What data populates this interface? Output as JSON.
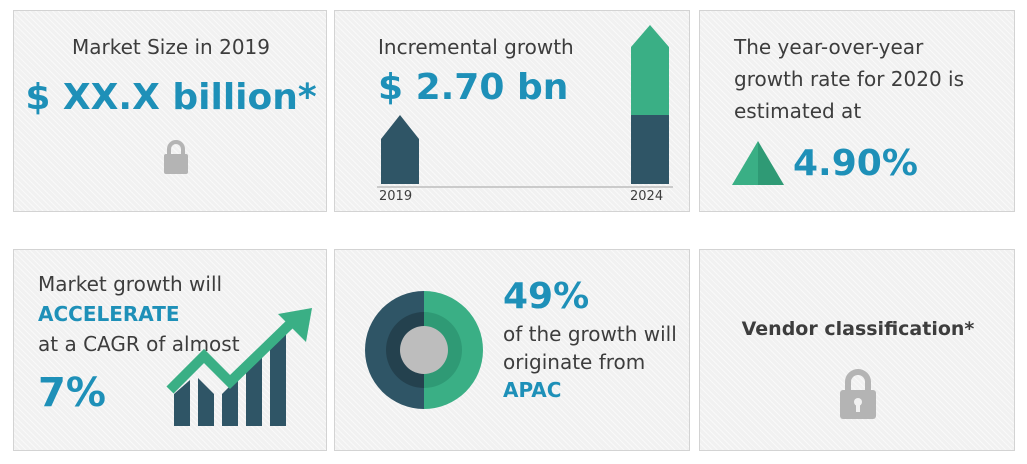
{
  "market_size": {
    "label": "Market Size in 2019",
    "value": "$ XX.X billion*",
    "icon": "padlock-icon"
  },
  "incremental_growth": {
    "label": "Incremental growth",
    "value": "$ 2.70 bn",
    "year_start": "2019",
    "year_end": "2024",
    "colors": {
      "dark": "#2f5566",
      "green": "#3aaf85"
    }
  },
  "yoy_growth": {
    "line1": "The year-over-year",
    "line2": "growth rate for 2020 is",
    "line3": "estimated at",
    "value": "4.90%",
    "icon": "triangle-up-icon"
  },
  "cagr": {
    "line1": "Market growth will",
    "accelerate": "ACCELERATE",
    "line3": "at a CAGR of almost",
    "value": "7%",
    "icon": "growth-arrow-icon"
  },
  "region": {
    "percent": "49%",
    "line1": "of the growth will",
    "line2": "originate from",
    "region": "APAC",
    "icon": "donut-chart-icon"
  },
  "vendor": {
    "label": "Vendor classification*",
    "icon": "padlock-icon"
  },
  "colors": {
    "accent": "#1e90b8",
    "green": "#3aaf85",
    "dark": "#2f5566",
    "lock": "#b4b4b4"
  }
}
